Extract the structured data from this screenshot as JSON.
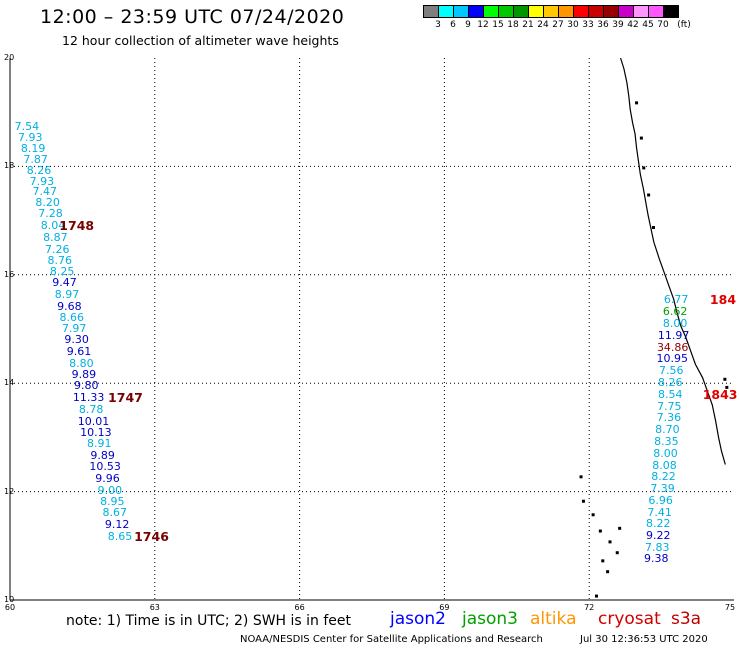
{
  "header": {
    "title": "12:00 – 23:59 UTC 07/24/2020",
    "subtitle": "12 hour collection of altimeter wave heights"
  },
  "color_scale": {
    "colors": [
      "#7f7f7f",
      "#00ffff",
      "#00c8ff",
      "#0000ff",
      "#00ff00",
      "#00c800",
      "#009600",
      "#ffff00",
      "#ffc800",
      "#ff9600",
      "#ff0000",
      "#c80000",
      "#960000",
      "#c800c8",
      "#ff96ff",
      "#ff55ff",
      "#000000"
    ],
    "labels": [
      "3",
      "6",
      "9",
      "12",
      "15",
      "18",
      "21",
      "24",
      "27",
      "30",
      "33",
      "36",
      "39",
      "42",
      "45",
      "70",
      "(ft)"
    ]
  },
  "axes": {
    "y_ticks": [
      "20",
      "18",
      "16",
      "14",
      "12",
      "10"
    ],
    "x_ticks": [
      "60",
      "63",
      "66",
      "69",
      "72",
      "75"
    ]
  },
  "tracks": [
    {
      "name": "west-track",
      "observations": [
        {
          "v": "7.54",
          "lat": 18.72,
          "lon": 60.35,
          "color": "#00b0e0"
        },
        {
          "v": "7.93",
          "lat": 18.52,
          "lon": 60.42,
          "color": "#00b0e0"
        },
        {
          "v": "8.19",
          "lat": 18.32,
          "lon": 60.48,
          "color": "#00b0e0"
        },
        {
          "v": "7.87",
          "lat": 18.12,
          "lon": 60.53,
          "color": "#00b0e0"
        },
        {
          "v": "8.26",
          "lat": 17.92,
          "lon": 60.6,
          "color": "#00b0e0"
        },
        {
          "v": "7.93",
          "lat": 17.72,
          "lon": 60.66,
          "color": "#00b0e0"
        },
        {
          "v": "7.47",
          "lat": 17.52,
          "lon": 60.72,
          "color": "#00b0e0"
        },
        {
          "v": "8.20",
          "lat": 17.32,
          "lon": 60.78,
          "color": "#00b0e0"
        },
        {
          "v": "7.28",
          "lat": 17.12,
          "lon": 60.84,
          "color": "#00b0e0"
        },
        {
          "v": "8.04",
          "lat": 16.9,
          "lon": 60.89,
          "color": "#00b0e0"
        },
        {
          "v": "8.87",
          "lat": 16.68,
          "lon": 60.94,
          "color": "#00b0e0"
        },
        {
          "v": "7.26",
          "lat": 16.45,
          "lon": 60.98,
          "color": "#00b0e0"
        },
        {
          "v": "8.76",
          "lat": 16.25,
          "lon": 61.03,
          "color": "#00b0e0"
        },
        {
          "v": "8.25",
          "lat": 16.05,
          "lon": 61.08,
          "color": "#00b0e0"
        },
        {
          "v": "9.47",
          "lat": 15.84,
          "lon": 61.13,
          "color": "#0000c8"
        },
        {
          "v": "8.97",
          "lat": 15.63,
          "lon": 61.18,
          "color": "#00b0e0"
        },
        {
          "v": "9.68",
          "lat": 15.41,
          "lon": 61.23,
          "color": "#0000c8"
        },
        {
          "v": "8.66",
          "lat": 15.21,
          "lon": 61.28,
          "color": "#00b0e0"
        },
        {
          "v": "7.97",
          "lat": 15.0,
          "lon": 61.33,
          "color": "#00b0e0"
        },
        {
          "v": "9.30",
          "lat": 14.79,
          "lon": 61.38,
          "color": "#0000c8"
        },
        {
          "v": "9.61",
          "lat": 14.57,
          "lon": 61.43,
          "color": "#0000c8"
        },
        {
          "v": "8.80",
          "lat": 14.36,
          "lon": 61.48,
          "color": "#00b0e0"
        },
        {
          "v": "9.89",
          "lat": 14.15,
          "lon": 61.53,
          "color": "#0000c8"
        },
        {
          "v": "9.80",
          "lat": 13.94,
          "lon": 61.58,
          "color": "#0000c8"
        },
        {
          "v": "11.33",
          "lat": 13.72,
          "lon": 61.63,
          "color": "#0000c8"
        },
        {
          "v": "8.78",
          "lat": 13.5,
          "lon": 61.68,
          "color": "#00b0e0"
        },
        {
          "v": "10.01",
          "lat": 13.29,
          "lon": 61.73,
          "color": "#0000c8"
        },
        {
          "v": "10.13",
          "lat": 13.08,
          "lon": 61.78,
          "color": "#0000c8"
        },
        {
          "v": "8.91",
          "lat": 12.87,
          "lon": 61.85,
          "color": "#00b0e0"
        },
        {
          "v": "9.89",
          "lat": 12.66,
          "lon": 61.92,
          "color": "#0000c8"
        },
        {
          "v": "10.53",
          "lat": 12.45,
          "lon": 61.97,
          "color": "#0000c8"
        },
        {
          "v": "9.96",
          "lat": 12.24,
          "lon": 62.02,
          "color": "#0000c8"
        },
        {
          "v": "9.00",
          "lat": 12.02,
          "lon": 62.07,
          "color": "#00b0e0"
        },
        {
          "v": "8.95",
          "lat": 11.81,
          "lon": 62.12,
          "color": "#00b0e0"
        },
        {
          "v": "8.67",
          "lat": 11.6,
          "lon": 62.17,
          "color": "#00b0e0"
        },
        {
          "v": "9.12",
          "lat": 11.39,
          "lon": 62.22,
          "color": "#0000c8"
        },
        {
          "v": "8.65",
          "lat": 11.17,
          "lon": 62.28,
          "color": "#00b0e0"
        }
      ]
    },
    {
      "name": "east-track",
      "observations": [
        {
          "v": "6.77",
          "lat": 15.53,
          "lon": 73.8,
          "color": "#00b0e0"
        },
        {
          "v": "6.62",
          "lat": 15.32,
          "lon": 73.78,
          "color": "#00a000"
        },
        {
          "v": "8.00",
          "lat": 15.1,
          "lon": 73.78,
          "color": "#00b0e0"
        },
        {
          "v": "11.97",
          "lat": 14.88,
          "lon": 73.75,
          "color": "#0000c8"
        },
        {
          "v": "34.86",
          "lat": 14.65,
          "lon": 73.73,
          "color": "#960000"
        },
        {
          "v": "10.95",
          "lat": 14.44,
          "lon": 73.72,
          "color": "#0000c8"
        },
        {
          "v": "7.56",
          "lat": 14.22,
          "lon": 73.7,
          "color": "#00b0e0"
        },
        {
          "v": "8.26",
          "lat": 14.0,
          "lon": 73.68,
          "color": "#00b0e0"
        },
        {
          "v": "8.54",
          "lat": 13.79,
          "lon": 73.68,
          "color": "#00b0e0"
        },
        {
          "v": "7.75",
          "lat": 13.57,
          "lon": 73.66,
          "color": "#00b0e0"
        },
        {
          "v": "7.36",
          "lat": 13.36,
          "lon": 73.65,
          "color": "#00b0e0"
        },
        {
          "v": "8.70",
          "lat": 13.14,
          "lon": 73.62,
          "color": "#00b0e0"
        },
        {
          "v": "8.35",
          "lat": 12.92,
          "lon": 73.6,
          "color": "#00b0e0"
        },
        {
          "v": "8.00",
          "lat": 12.7,
          "lon": 73.58,
          "color": "#00b0e0"
        },
        {
          "v": "8.08",
          "lat": 12.48,
          "lon": 73.56,
          "color": "#00b0e0"
        },
        {
          "v": "8.22",
          "lat": 12.27,
          "lon": 73.54,
          "color": "#00b0e0"
        },
        {
          "v": "7.39",
          "lat": 12.05,
          "lon": 73.52,
          "color": "#00b0e0"
        },
        {
          "v": "6.96",
          "lat": 11.83,
          "lon": 73.48,
          "color": "#00b0e0"
        },
        {
          "v": "7.41",
          "lat": 11.61,
          "lon": 73.46,
          "color": "#00b0e0"
        },
        {
          "v": "8.22",
          "lat": 11.4,
          "lon": 73.43,
          "color": "#00b0e0"
        },
        {
          "v": "9.22",
          "lat": 11.18,
          "lon": 73.43,
          "color": "#0000c8"
        },
        {
          "v": "7.83",
          "lat": 10.96,
          "lon": 73.41,
          "color": "#00b0e0"
        },
        {
          "v": "9.38",
          "lat": 10.75,
          "lon": 73.39,
          "color": "#0000c8"
        }
      ]
    }
  ],
  "time_stamps": [
    {
      "t": "1748",
      "lat": 16.9,
      "lon": 61.27,
      "color": "#7a0000"
    },
    {
      "t": "1747",
      "lat": 13.72,
      "lon": 62.28,
      "color": "#7a0000"
    },
    {
      "t": "1746",
      "lat": 11.17,
      "lon": 62.82,
      "color": "#7a0000"
    },
    {
      "t": "184",
      "lat": 15.53,
      "lon": 74.75,
      "color": "#e00000"
    },
    {
      "t": "1843",
      "lat": 13.79,
      "lon": 74.6,
      "color": "#e00000"
    }
  ],
  "note": "note:  1) Time is in UTC;  2) SWH is in feet",
  "legend": [
    {
      "name": "jason2",
      "color": "#0000ff"
    },
    {
      "name": "jason3",
      "color": "#00a000"
    },
    {
      "name": "altika",
      "color": "#ff9600"
    },
    {
      "name": "cryosat",
      "color": "#d00000"
    },
    {
      "name": "s3a",
      "color": "#c00000"
    }
  ],
  "footer": {
    "credit": "NOAA/NESDIS Center for Satellite Applications and Research",
    "timestamp": "Jul 30 12:36:53 UTC 2020"
  }
}
